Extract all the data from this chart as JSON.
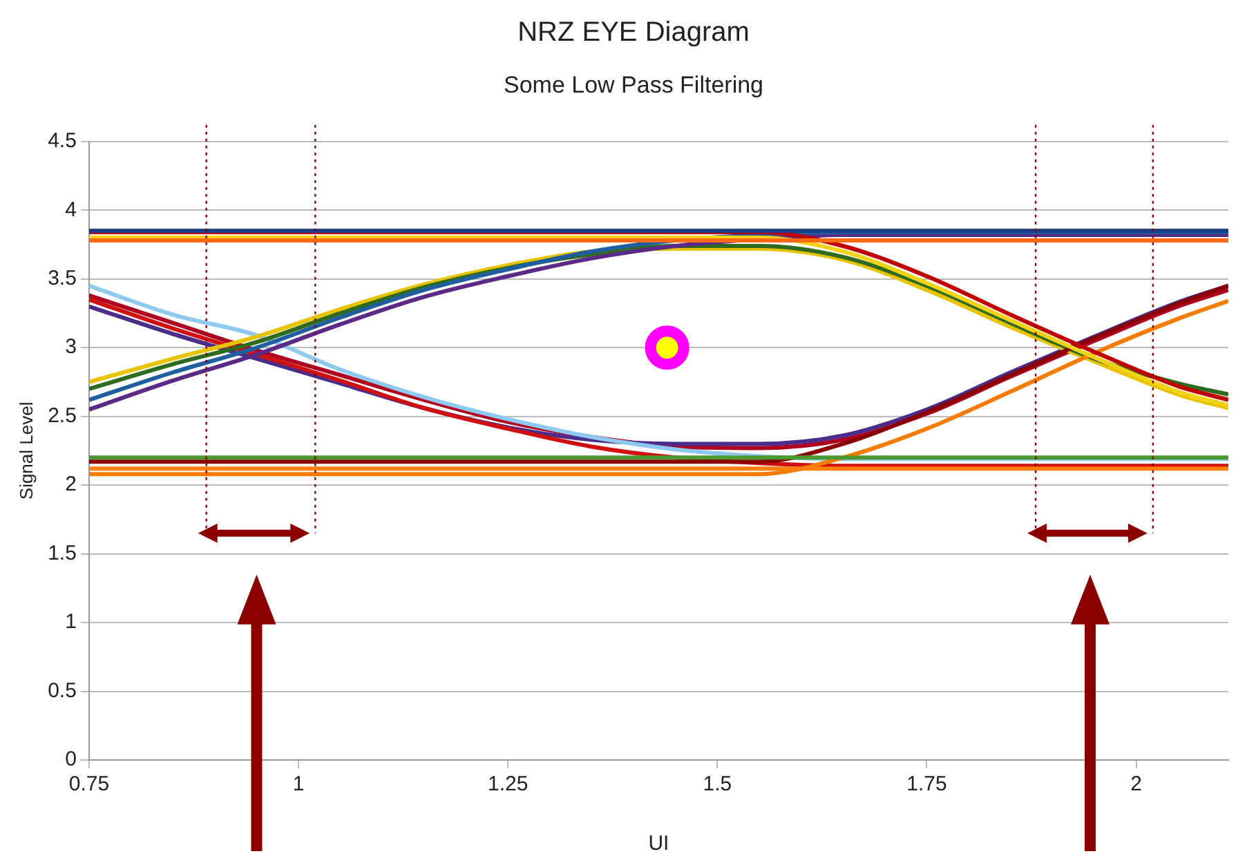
{
  "chart_data": {
    "type": "line",
    "title": "NRZ EYE Diagram",
    "subtitle": "Some Low Pass Filtering",
    "xlabel": "UI",
    "ylabel": "Signal Level",
    "x": [
      0.75,
      0.85,
      0.95,
      1.05,
      1.15,
      1.25,
      1.35,
      1.45,
      1.55,
      1.65,
      1.75,
      1.85,
      1.95,
      2.05,
      2.11
    ],
    "xlim": [
      0.75,
      2.11
    ],
    "xticks": [
      0.75,
      1,
      1.25,
      1.5,
      1.75,
      2
    ],
    "ylim": [
      0,
      4.5
    ],
    "yticks": [
      0,
      0.5,
      1,
      1.5,
      2,
      2.5,
      3,
      3.5,
      4,
      4.5
    ],
    "grid": "y",
    "legend": false,
    "marker": "none",
    "line_style": "solid",
    "series": [
      {
        "color": "#1f3c88",
        "values": [
          3.85,
          3.85,
          3.85,
          3.85,
          3.85,
          3.85,
          3.85,
          3.85,
          3.85,
          3.85,
          3.85,
          3.85,
          3.85,
          3.85,
          3.85
        ]
      },
      {
        "color": "#ff6a13",
        "values": [
          3.78,
          3.78,
          3.78,
          3.78,
          3.78,
          3.78,
          3.78,
          3.78,
          3.78,
          3.78,
          3.78,
          3.78,
          3.78,
          3.78,
          3.78
        ]
      },
      {
        "color": "#c00000",
        "values": [
          3.84,
          3.84,
          3.84,
          3.84,
          3.84,
          3.84,
          3.84,
          3.84,
          3.84,
          3.74,
          3.52,
          3.24,
          2.97,
          2.72,
          2.62
        ]
      },
      {
        "color": "#f2d31a",
        "values": [
          3.8,
          3.8,
          3.8,
          3.8,
          3.8,
          3.8,
          3.8,
          3.8,
          3.8,
          3.7,
          3.47,
          3.2,
          2.93,
          2.68,
          2.58
        ]
      },
      {
        "color": "#4a9a2e",
        "values": [
          2.2,
          2.2,
          2.2,
          2.2,
          2.2,
          2.2,
          2.2,
          2.2,
          2.2,
          2.2,
          2.2,
          2.2,
          2.2,
          2.2,
          2.2
        ]
      },
      {
        "color": "#ff7f0e",
        "values": [
          2.12,
          2.12,
          2.12,
          2.12,
          2.12,
          2.12,
          2.12,
          2.12,
          2.12,
          2.12,
          2.12,
          2.12,
          2.12,
          2.12,
          2.12
        ]
      },
      {
        "color": "#8b0000",
        "values": [
          2.17,
          2.17,
          2.17,
          2.17,
          2.17,
          2.17,
          2.17,
          2.17,
          2.17,
          2.3,
          2.53,
          2.8,
          3.07,
          3.32,
          3.45
        ]
      },
      {
        "color": "#f57c00",
        "values": [
          2.08,
          2.08,
          2.08,
          2.08,
          2.08,
          2.08,
          2.08,
          2.08,
          2.08,
          2.2,
          2.41,
          2.68,
          2.96,
          3.21,
          3.34
        ]
      },
      {
        "color": "#1f5fa0",
        "values": [
          2.62,
          2.82,
          3.0,
          3.22,
          3.42,
          3.57,
          3.7,
          3.78,
          3.82,
          3.84,
          3.84,
          3.84,
          3.84,
          3.84,
          3.84
        ]
      },
      {
        "color": "#5b2a86",
        "values": [
          2.55,
          2.76,
          2.95,
          3.17,
          3.37,
          3.52,
          3.65,
          3.74,
          3.79,
          3.82,
          3.82,
          3.82,
          3.82,
          3.82,
          3.82
        ]
      },
      {
        "color": "#2e6b1f",
        "values": [
          2.7,
          2.88,
          3.04,
          3.25,
          3.44,
          3.58,
          3.68,
          3.74,
          3.74,
          3.66,
          3.45,
          3.18,
          2.92,
          2.74,
          2.66
        ]
      },
      {
        "color": "#e8c300",
        "values": [
          2.75,
          2.92,
          3.08,
          3.28,
          3.46,
          3.6,
          3.7,
          3.72,
          3.72,
          3.64,
          3.42,
          3.15,
          2.9,
          2.66,
          2.56
        ]
      },
      {
        "color": "#8ec9f0",
        "values": [
          3.45,
          3.24,
          3.09,
          2.84,
          2.64,
          2.48,
          2.35,
          2.26,
          2.21,
          2.19,
          2.19,
          2.19,
          2.19,
          2.19,
          2.19
        ]
      },
      {
        "color": "#d01010",
        "values": [
          3.35,
          3.14,
          2.95,
          2.76,
          2.56,
          2.41,
          2.28,
          2.2,
          2.16,
          2.14,
          2.14,
          2.14,
          2.14,
          2.14,
          2.14
        ]
      },
      {
        "color": "#4b2c8a",
        "values": [
          3.3,
          3.1,
          2.92,
          2.74,
          2.56,
          2.42,
          2.33,
          2.3,
          2.3,
          2.36,
          2.55,
          2.82,
          3.08,
          3.33,
          3.45
        ]
      },
      {
        "color": "#b00020",
        "values": [
          3.38,
          3.18,
          2.98,
          2.8,
          2.62,
          2.46,
          2.35,
          2.28,
          2.27,
          2.33,
          2.52,
          2.79,
          3.05,
          3.3,
          3.42
        ]
      },
      {
        "type": "scatter",
        "marker": "circle",
        "color": "#ff00ff",
        "x": [
          1.44
        ],
        "values": [
          3.0
        ]
      }
    ],
    "ref_lines": [
      {
        "axis": "x",
        "value": 0.89,
        "color": "#8b0000",
        "line_style": "dotted"
      },
      {
        "axis": "x",
        "value": 1.02,
        "color": "#8b0000",
        "line_style": "dotted"
      },
      {
        "axis": "x",
        "value": 1.88,
        "color": "#8b0000",
        "line_style": "dotted"
      },
      {
        "axis": "x",
        "value": 2.02,
        "color": "#8b0000",
        "line_style": "dotted"
      }
    ]
  }
}
